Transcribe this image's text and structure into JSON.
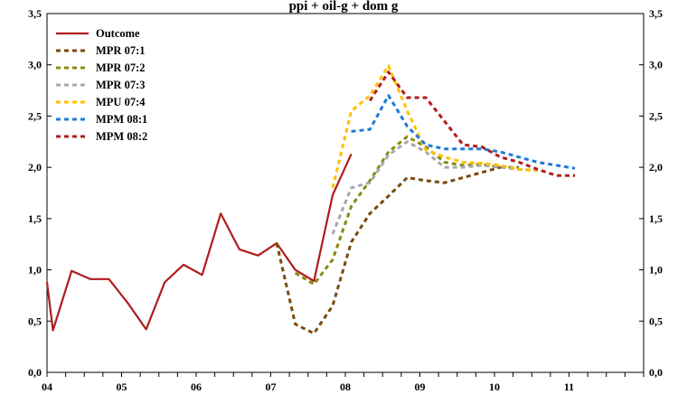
{
  "chart_data": {
    "type": "line",
    "title": "",
    "title_fragment": "ppi + oil-g + dom g",
    "xlabel": "",
    "ylabel": "",
    "x_ticks": [
      "04",
      "05",
      "06",
      "07",
      "08",
      "09",
      "10",
      "11"
    ],
    "y_ticks": [
      "0,0",
      "0,5",
      "1,0",
      "1,5",
      "2,0",
      "2,5",
      "3,0",
      "3,5"
    ],
    "y_ticks_right": [
      "0,0",
      "0,5",
      "1,0",
      "1,5",
      "2,0",
      "2,5",
      "3,0",
      "3,5"
    ],
    "xlim": [
      2004.0,
      2012.0
    ],
    "ylim": [
      0,
      3.5
    ],
    "grid": false,
    "legend_position": "top-left",
    "series": [
      {
        "name": "Outcome",
        "color": "#b01c1c",
        "style": "solid",
        "points": [
          [
            2004.0,
            0.88
          ],
          [
            2004.08,
            0.41
          ],
          [
            2004.33,
            0.99
          ],
          [
            2004.58,
            0.91
          ],
          [
            2004.83,
            0.91
          ],
          [
            2005.08,
            0.68
          ],
          [
            2005.33,
            0.42
          ],
          [
            2005.58,
            0.88
          ],
          [
            2005.83,
            1.05
          ],
          [
            2006.08,
            0.95
          ],
          [
            2006.33,
            1.55
          ],
          [
            2006.58,
            1.2
          ],
          [
            2006.83,
            1.14
          ],
          [
            2007.08,
            1.26
          ],
          [
            2007.33,
            1.0
          ],
          [
            2007.58,
            0.89
          ],
          [
            2007.83,
            1.73
          ],
          [
            2008.08,
            2.13
          ]
        ]
      },
      {
        "name": "MPR 07:1",
        "color": "#7b4a10",
        "style": "dashed",
        "points": [
          [
            2007.08,
            1.26
          ],
          [
            2007.33,
            0.47
          ],
          [
            2007.58,
            0.38
          ],
          [
            2007.83,
            0.65
          ],
          [
            2008.08,
            1.27
          ],
          [
            2008.33,
            1.55
          ],
          [
            2008.58,
            1.72
          ],
          [
            2008.83,
            1.9
          ],
          [
            2009.08,
            1.87
          ],
          [
            2009.33,
            1.85
          ],
          [
            2009.58,
            1.9
          ],
          [
            2009.83,
            1.95
          ],
          [
            2010.08,
            2.0
          ]
        ]
      },
      {
        "name": "MPR 07:2",
        "color": "#8a8a10",
        "style": "dashed",
        "points": [
          [
            2007.33,
            0.97
          ],
          [
            2007.58,
            0.86
          ],
          [
            2007.83,
            1.1
          ],
          [
            2008.08,
            1.62
          ],
          [
            2008.33,
            1.87
          ],
          [
            2008.58,
            2.15
          ],
          [
            2008.83,
            2.3
          ],
          [
            2009.08,
            2.2
          ],
          [
            2009.33,
            2.05
          ],
          [
            2009.58,
            2.02
          ],
          [
            2009.83,
            2.03
          ],
          [
            2010.08,
            2.0
          ],
          [
            2010.33,
            2.0
          ]
        ]
      },
      {
        "name": "MPR 07:3",
        "color": "#a8a8a8",
        "style": "dashed",
        "points": [
          [
            2007.83,
            1.35
          ],
          [
            2008.08,
            1.8
          ],
          [
            2008.33,
            1.85
          ],
          [
            2008.58,
            2.12
          ],
          [
            2008.83,
            2.25
          ],
          [
            2009.08,
            2.15
          ],
          [
            2009.33,
            2.0
          ],
          [
            2009.58,
            2.0
          ],
          [
            2009.83,
            2.02
          ],
          [
            2010.08,
            2.0
          ],
          [
            2010.33,
            1.98
          ],
          [
            2010.58,
            1.97
          ]
        ]
      },
      {
        "name": "MPU 07:4",
        "color": "#ffc000",
        "style": "dashed",
        "points": [
          [
            2007.83,
            1.8
          ],
          [
            2008.08,
            2.55
          ],
          [
            2008.33,
            2.7
          ],
          [
            2008.58,
            2.99
          ],
          [
            2008.83,
            2.55
          ],
          [
            2009.08,
            2.17
          ],
          [
            2009.33,
            2.1
          ],
          [
            2009.58,
            2.05
          ],
          [
            2009.83,
            2.04
          ],
          [
            2010.08,
            2.02
          ],
          [
            2010.33,
            1.98
          ],
          [
            2010.58,
            1.97
          ]
        ]
      },
      {
        "name": "MPM 08:1",
        "color": "#1f7bd6",
        "style": "dashed",
        "points": [
          [
            2008.08,
            2.35
          ],
          [
            2008.33,
            2.37
          ],
          [
            2008.58,
            2.7
          ],
          [
            2008.83,
            2.4
          ],
          [
            2009.08,
            2.22
          ],
          [
            2009.33,
            2.18
          ],
          [
            2009.58,
            2.18
          ],
          [
            2009.83,
            2.18
          ],
          [
            2010.08,
            2.15
          ],
          [
            2010.33,
            2.1
          ],
          [
            2010.58,
            2.05
          ],
          [
            2010.83,
            2.02
          ],
          [
            2011.08,
            1.99
          ]
        ]
      },
      {
        "name": "MPM 08:2",
        "color": "#b01c1c",
        "style": "dashed",
        "points": [
          [
            2008.33,
            2.65
          ],
          [
            2008.58,
            2.93
          ],
          [
            2008.83,
            2.68
          ],
          [
            2009.08,
            2.68
          ],
          [
            2009.33,
            2.45
          ],
          [
            2009.58,
            2.22
          ],
          [
            2009.83,
            2.2
          ],
          [
            2010.08,
            2.1
          ],
          [
            2010.33,
            2.05
          ],
          [
            2010.58,
            1.98
          ],
          [
            2010.83,
            1.92
          ],
          [
            2011.08,
            1.92
          ]
        ]
      }
    ]
  }
}
